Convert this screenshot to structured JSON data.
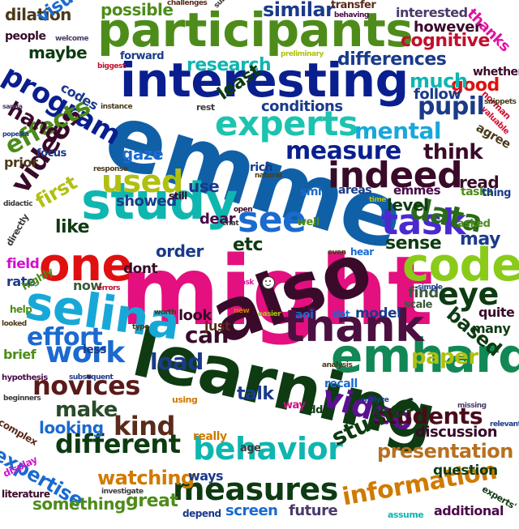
{
  "words": [
    "might",
    "emme",
    "learning",
    "also",
    "participants",
    "interesting",
    "study",
    "selina",
    "emhardt",
    "thank",
    "one",
    "code",
    "experts",
    "indeed",
    "task",
    "see",
    "behavior",
    "measures",
    "video",
    "eye",
    "work",
    "data",
    "program",
    "videos",
    "used",
    "different",
    "novices",
    "kind",
    "measure",
    "mental",
    "students",
    "presentation",
    "information",
    "effort",
    "load",
    "studies",
    "effects",
    "pupil",
    "similar",
    "make",
    "think",
    "can",
    "paper",
    "watching",
    "expertise",
    "differences",
    "cognitive",
    "good",
    "much",
    "research",
    "etc",
    "first",
    "sense",
    "like",
    "order",
    "talk",
    "based",
    "hand",
    "looking",
    "great",
    "screen",
    "something",
    "may",
    "read",
    "level",
    "future",
    "discussion",
    "question",
    "additional",
    "possible",
    "dilation",
    "visual",
    "however",
    "interested",
    "maybe",
    "follow",
    "conditions",
    "least",
    "gaze",
    "use",
    "showed",
    "dear",
    "field",
    "rate",
    "now",
    "dont",
    "look",
    "find",
    "model",
    "quite",
    "many",
    "brief",
    "ways",
    "depend",
    "assume",
    "thanks",
    "codes",
    "agree",
    "prior",
    "focus",
    "forward",
    "emmes",
    "areas",
    "tasks",
    "smi",
    "still",
    "rich",
    "natural",
    "recall",
    "aoi",
    "dot",
    "just",
    "less",
    "age",
    "really",
    "way",
    "add",
    "scale",
    "asked",
    "thing",
    "well",
    "even",
    "hear",
    "simple",
    "errors",
    "easier",
    "new",
    "ask",
    "open",
    "chat",
    "worth",
    "type",
    "hypothesis",
    "subsequent",
    "using",
    "beginners",
    "analyze",
    "missing",
    "relevant",
    "complex",
    "display",
    "literature",
    "investigate",
    "experts'",
    "analysis",
    "whether",
    "norman",
    "valuable",
    "instance",
    "biggest",
    "welcome",
    "people",
    "preliminary",
    "challenges",
    "subjective",
    "transfer",
    "behaving",
    "popelka",
    "sanda",
    "response",
    "didactic",
    "directly",
    "highly",
    "help",
    "looked",
    "snippets",
    "rest",
    "time",
    "interested"
  ],
  "colors": {
    "primary_blue": "#0a1f8f",
    "magenta": "#e4107f",
    "dark_green": "#0e3b12",
    "purple": "#4a0a4a",
    "green": "#4d8c1a",
    "teal": "#0fb6b0"
  }
}
